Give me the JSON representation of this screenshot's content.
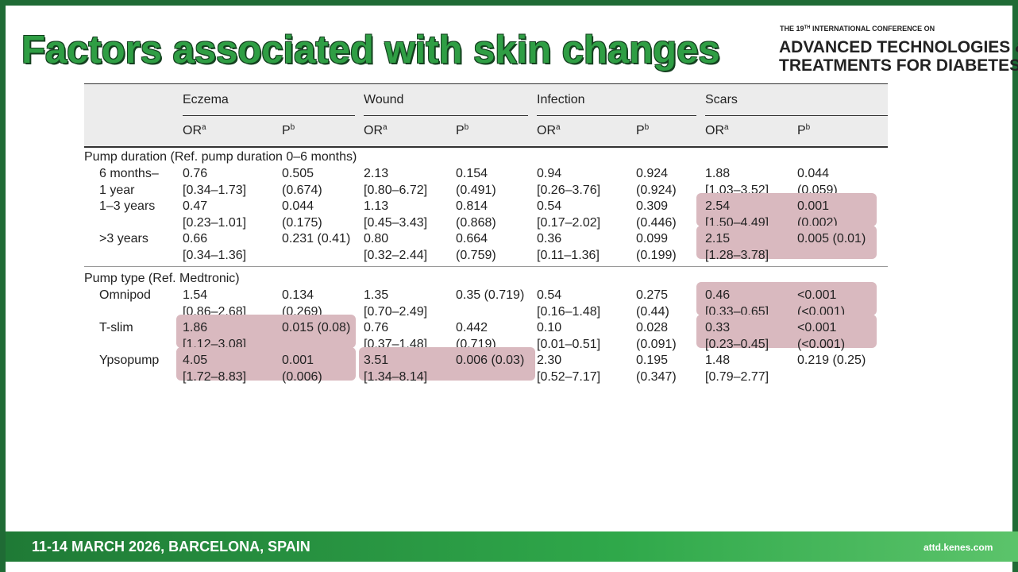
{
  "header": {
    "title": "Factors associated with skin changes",
    "conference": {
      "line1": {
        "before": "THE 19",
        "sup": "TH",
        "after": " INTERNATIONAL CONFERENCE ON"
      },
      "line2": "ADVANCED TECHNOLOGIES &",
      "line3": "TREATMENTS FOR DIABETES"
    }
  },
  "table": {
    "groups": [
      "Eczema",
      "Wound",
      "Infection",
      "Scars"
    ],
    "subheaders": [
      {
        "text": "OR",
        "sup": "a"
      },
      {
        "text": "P",
        "sup": "b"
      }
    ],
    "sections": [
      {
        "title": "Pump duration (Ref. pump duration 0–6 months)",
        "rows": [
          {
            "label": [
              "6 months–",
              "1 year"
            ],
            "highlight": [],
            "cells": [
              [
                "0.76",
                "[0.34–1.73]"
              ],
              [
                "0.505",
                "(0.674)"
              ],
              [
                "2.13",
                "[0.80–6.72]"
              ],
              [
                "0.154",
                "(0.491)"
              ],
              [
                "0.94",
                "[0.26–3.76]"
              ],
              [
                "0.924",
                "(0.924)"
              ],
              [
                "1.88",
                "[1.03–3.52]"
              ],
              [
                "0.044",
                "(0.059)"
              ]
            ]
          },
          {
            "label": [
              "1–3 years"
            ],
            "highlight": [
              3
            ],
            "cells": [
              [
                "0.47",
                "[0.23–1.01]"
              ],
              [
                "0.044",
                "(0.175)"
              ],
              [
                "1.13",
                "[0.45–3.43]"
              ],
              [
                "0.814",
                "(0.868)"
              ],
              [
                "0.54",
                "[0.17–2.02]"
              ],
              [
                "0.309",
                "(0.446)"
              ],
              [
                "2.54",
                "[1.50–4.49]"
              ],
              [
                "0.001",
                "(0.002)"
              ]
            ]
          },
          {
            "label": [
              ">3 years"
            ],
            "highlight": [
              3
            ],
            "cells": [
              [
                "0.66",
                "[0.34–1.36]"
              ],
              [
                "0.231 (0.41)"
              ],
              [
                "0.80",
                "[0.32–2.44]"
              ],
              [
                "0.664",
                "(0.759)"
              ],
              [
                "0.36",
                "[0.11–1.36]"
              ],
              [
                "0.099",
                "(0.199)"
              ],
              [
                "2.15",
                "[1.28–3.78]"
              ],
              [
                "0.005 (0.01)"
              ]
            ]
          }
        ]
      },
      {
        "title": "Pump type (Ref. Medtronic)",
        "rows": [
          {
            "label": [
              "Omnipod"
            ],
            "highlight": [
              3
            ],
            "cells": [
              [
                "1.54",
                "[0.86–2.68]"
              ],
              [
                "0.134",
                "(0.269)"
              ],
              [
                "1.35",
                "[0.70–2.49]"
              ],
              [
                "0.35 (0.719)"
              ],
              [
                "0.54",
                "[0.16–1.48]"
              ],
              [
                "0.275",
                "(0.44)"
              ],
              [
                "0.46",
                "[0.33–0.65]"
              ],
              [
                "<0.001",
                "(<0.001)"
              ]
            ]
          },
          {
            "label": [
              "T-slim"
            ],
            "highlight": [
              0,
              3
            ],
            "cells": [
              [
                "1.86",
                "[1.12–3.08]"
              ],
              [
                "0.015 (0.08)"
              ],
              [
                "0.76",
                "[0.37–1.48]"
              ],
              [
                "0.442",
                "(0.719)"
              ],
              [
                "0.10",
                "[0.01–0.51]"
              ],
              [
                "0.028",
                "(0.091)"
              ],
              [
                "0.33",
                "[0.23–0.45]"
              ],
              [
                "<0.001",
                "(<0.001)"
              ]
            ]
          },
          {
            "label": [
              "Ypsopump"
            ],
            "highlight": [
              0,
              1
            ],
            "cells": [
              [
                "4.05",
                "[1.72–8.83]"
              ],
              [
                "0.001",
                "(0.006)"
              ],
              [
                "3.51",
                "[1.34–8.14]"
              ],
              [
                "0.006 (0.03)"
              ],
              [
                "2.30",
                "[0.52–7.17]"
              ],
              [
                "0.195",
                "(0.347)"
              ],
              [
                "1.48",
                "[0.79–2.77]"
              ],
              [
                "0.219 (0.25)"
              ]
            ]
          }
        ]
      }
    ]
  },
  "footer": {
    "date": "11-14 MARCH 2026, BARCELONA, SPAIN",
    "url": "attd.kenes.com"
  }
}
